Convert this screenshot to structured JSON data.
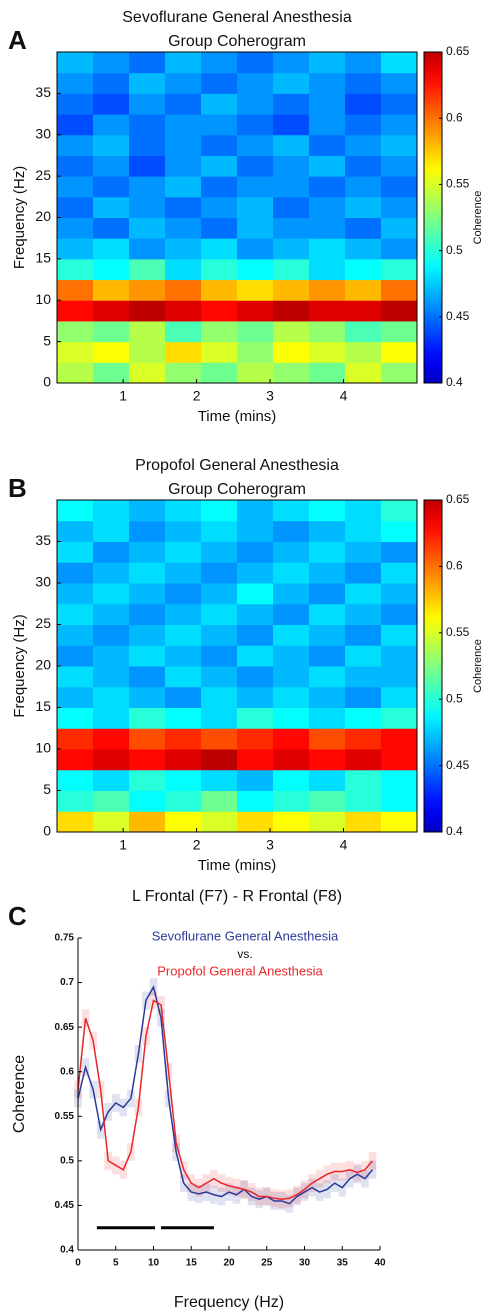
{
  "chart_data": [
    {
      "type": "heatmap",
      "panel": "A",
      "title": [
        "Sevoflurane General Anesthesia",
        "Group Coherogram"
      ],
      "xlabel": "Time (mins)",
      "ylabel": "Frequency (Hz)",
      "colorbar_label": "Coherence",
      "colormap": "jet",
      "x": [
        0.345,
        0.835,
        1.325,
        1.815,
        2.305,
        2.795,
        3.285,
        3.775,
        4.265,
        4.755
      ],
      "y": [
        1.25,
        3.75,
        6.25,
        8.75,
        11.25,
        13.75,
        16.25,
        18.75,
        21.25,
        23.75,
        26.25,
        28.75,
        31.25,
        33.75,
        36.25,
        38.75
      ],
      "values": [
        [
          0.54,
          0.52,
          0.55,
          0.53,
          0.52,
          0.54,
          0.53,
          0.52,
          0.55,
          0.53
        ],
        [
          0.55,
          0.56,
          0.54,
          0.57,
          0.55,
          0.53,
          0.56,
          0.55,
          0.54,
          0.56
        ],
        [
          0.53,
          0.52,
          0.54,
          0.51,
          0.53,
          0.52,
          0.54,
          0.53,
          0.51,
          0.52
        ],
        [
          0.63,
          0.64,
          0.65,
          0.64,
          0.63,
          0.64,
          0.65,
          0.64,
          0.64,
          0.65
        ],
        [
          0.6,
          0.58,
          0.59,
          0.6,
          0.58,
          0.57,
          0.58,
          0.59,
          0.58,
          0.6
        ],
        [
          0.5,
          0.49,
          0.51,
          0.48,
          0.5,
          0.49,
          0.5,
          0.48,
          0.49,
          0.5
        ],
        [
          0.47,
          0.48,
          0.46,
          0.47,
          0.48,
          0.46,
          0.47,
          0.48,
          0.47,
          0.46
        ],
        [
          0.46,
          0.45,
          0.47,
          0.46,
          0.45,
          0.47,
          0.46,
          0.46,
          0.45,
          0.47
        ],
        [
          0.45,
          0.47,
          0.46,
          0.45,
          0.46,
          0.47,
          0.45,
          0.46,
          0.47,
          0.46
        ],
        [
          0.46,
          0.45,
          0.46,
          0.47,
          0.45,
          0.46,
          0.46,
          0.45,
          0.46,
          0.45
        ],
        [
          0.45,
          0.46,
          0.44,
          0.46,
          0.47,
          0.45,
          0.46,
          0.47,
          0.45,
          0.46
        ],
        [
          0.46,
          0.47,
          0.45,
          0.46,
          0.45,
          0.46,
          0.47,
          0.45,
          0.46,
          0.47
        ],
        [
          0.44,
          0.46,
          0.45,
          0.46,
          0.46,
          0.45,
          0.44,
          0.46,
          0.45,
          0.46
        ],
        [
          0.45,
          0.44,
          0.46,
          0.45,
          0.47,
          0.46,
          0.45,
          0.46,
          0.44,
          0.45
        ],
        [
          0.46,
          0.45,
          0.47,
          0.46,
          0.45,
          0.46,
          0.47,
          0.46,
          0.45,
          0.46
        ],
        [
          0.47,
          0.46,
          0.45,
          0.47,
          0.46,
          0.45,
          0.46,
          0.47,
          0.46,
          0.48
        ]
      ],
      "xlim": [
        0.1,
        5
      ],
      "ylim": [
        0,
        40
      ],
      "xticks": [
        1,
        2,
        3,
        4
      ],
      "yticks": [
        0,
        5,
        10,
        15,
        20,
        25,
        30,
        35
      ],
      "zlim": [
        0.4,
        0.65
      ],
      "zticks": [
        0.4,
        0.45,
        0.5,
        0.55,
        0.6,
        0.65
      ]
    },
    {
      "type": "heatmap",
      "panel": "B",
      "title": [
        "Propofol General Anesthesia",
        "Group Coherogram"
      ],
      "xlabel": "Time (mins)",
      "ylabel": "Frequency (Hz)",
      "colorbar_label": "Coherence",
      "colormap": "jet",
      "x": [
        0.345,
        0.835,
        1.325,
        1.815,
        2.305,
        2.795,
        3.285,
        3.775,
        4.265,
        4.755
      ],
      "y": [
        1.25,
        3.75,
        6.25,
        8.75,
        11.25,
        13.75,
        16.25,
        18.75,
        21.25,
        23.75,
        26.25,
        28.75,
        31.25,
        33.75,
        36.25,
        38.75
      ],
      "values": [
        [
          0.57,
          0.55,
          0.58,
          0.56,
          0.55,
          0.57,
          0.56,
          0.55,
          0.57,
          0.56
        ],
        [
          0.5,
          0.51,
          0.49,
          0.5,
          0.52,
          0.49,
          0.5,
          0.51,
          0.5,
          0.49
        ],
        [
          0.49,
          0.48,
          0.5,
          0.49,
          0.48,
          0.47,
          0.49,
          0.48,
          0.5,
          0.49
        ],
        [
          0.63,
          0.64,
          0.63,
          0.64,
          0.65,
          0.63,
          0.64,
          0.63,
          0.64,
          0.63
        ],
        [
          0.62,
          0.63,
          0.61,
          0.62,
          0.61,
          0.62,
          0.63,
          0.61,
          0.62,
          0.63
        ],
        [
          0.49,
          0.48,
          0.5,
          0.49,
          0.48,
          0.5,
          0.49,
          0.48,
          0.49,
          0.5
        ],
        [
          0.47,
          0.48,
          0.47,
          0.46,
          0.48,
          0.47,
          0.48,
          0.47,
          0.46,
          0.48
        ],
        [
          0.48,
          0.47,
          0.46,
          0.48,
          0.47,
          0.46,
          0.47,
          0.48,
          0.47,
          0.47
        ],
        [
          0.46,
          0.47,
          0.48,
          0.47,
          0.46,
          0.48,
          0.47,
          0.46,
          0.48,
          0.47
        ],
        [
          0.47,
          0.46,
          0.47,
          0.48,
          0.47,
          0.46,
          0.48,
          0.47,
          0.46,
          0.48
        ],
        [
          0.48,
          0.47,
          0.46,
          0.47,
          0.48,
          0.47,
          0.46,
          0.48,
          0.47,
          0.46
        ],
        [
          0.47,
          0.48,
          0.47,
          0.46,
          0.47,
          0.49,
          0.47,
          0.46,
          0.48,
          0.47
        ],
        [
          0.46,
          0.47,
          0.48,
          0.47,
          0.46,
          0.47,
          0.48,
          0.47,
          0.46,
          0.48
        ],
        [
          0.48,
          0.46,
          0.47,
          0.48,
          0.47,
          0.46,
          0.47,
          0.48,
          0.47,
          0.46
        ],
        [
          0.47,
          0.48,
          0.46,
          0.47,
          0.48,
          0.47,
          0.46,
          0.47,
          0.48,
          0.49
        ],
        [
          0.49,
          0.48,
          0.47,
          0.48,
          0.49,
          0.47,
          0.48,
          0.49,
          0.48,
          0.5
        ]
      ],
      "xlim": [
        0.1,
        5
      ],
      "ylim": [
        0,
        40
      ],
      "xticks": [
        1,
        2,
        3,
        4
      ],
      "yticks": [
        0,
        5,
        10,
        15,
        20,
        25,
        30,
        35
      ],
      "zlim": [
        0.4,
        0.65
      ],
      "zticks": [
        0.4,
        0.45,
        0.5,
        0.55,
        0.6,
        0.65
      ]
    },
    {
      "type": "line",
      "panel": "C",
      "title": "L Frontal (F7) - R Frontal (F8)",
      "xlabel": "Frequency (Hz)",
      "ylabel": "Coherence",
      "legend_separator": "vs.",
      "x": [
        0,
        1,
        2,
        3,
        4,
        5,
        6,
        7,
        8,
        9,
        10,
        11,
        12,
        13,
        14,
        15,
        16,
        17,
        18,
        19,
        20,
        21,
        22,
        23,
        24,
        25,
        26,
        27,
        28,
        29,
        30,
        31,
        32,
        33,
        34,
        35,
        36,
        37,
        38,
        39
      ],
      "series": [
        {
          "name": "Sevoflurane General Anesthesia",
          "color": "#2b3a9a",
          "values": [
            0.57,
            0.605,
            0.58,
            0.535,
            0.555,
            0.565,
            0.56,
            0.57,
            0.62,
            0.68,
            0.695,
            0.66,
            0.57,
            0.51,
            0.475,
            0.465,
            0.463,
            0.465,
            0.462,
            0.46,
            0.465,
            0.462,
            0.468,
            0.46,
            0.457,
            0.46,
            0.455,
            0.455,
            0.452,
            0.46,
            0.465,
            0.47,
            0.465,
            0.468,
            0.475,
            0.47,
            0.48,
            0.485,
            0.48,
            0.49
          ],
          "error": [
            0.01,
            0.01,
            0.01,
            0.01,
            0.01,
            0.01,
            0.01,
            0.01,
            0.01,
            0.01,
            0.01,
            0.01,
            0.01,
            0.01,
            0.01,
            0.01,
            0.01,
            0.01,
            0.01,
            0.01,
            0.01,
            0.01,
            0.01,
            0.01,
            0.01,
            0.01,
            0.01,
            0.01,
            0.01,
            0.01,
            0.01,
            0.01,
            0.01,
            0.01,
            0.01,
            0.01,
            0.01,
            0.01,
            0.01,
            0.01
          ]
        },
        {
          "name": "Propofol General Anesthesia",
          "color": "#e8262a",
          "values": [
            0.58,
            0.66,
            0.635,
            0.58,
            0.5,
            0.495,
            0.49,
            0.51,
            0.56,
            0.64,
            0.68,
            0.675,
            0.6,
            0.52,
            0.49,
            0.475,
            0.47,
            0.475,
            0.48,
            0.475,
            0.472,
            0.47,
            0.468,
            0.465,
            0.46,
            0.46,
            0.458,
            0.457,
            0.458,
            0.462,
            0.468,
            0.475,
            0.48,
            0.485,
            0.488,
            0.488,
            0.49,
            0.487,
            0.49,
            0.5
          ],
          "error": [
            0.01,
            0.01,
            0.01,
            0.01,
            0.01,
            0.01,
            0.01,
            0.01,
            0.01,
            0.01,
            0.01,
            0.01,
            0.01,
            0.01,
            0.01,
            0.01,
            0.01,
            0.01,
            0.01,
            0.01,
            0.01,
            0.01,
            0.01,
            0.01,
            0.01,
            0.01,
            0.01,
            0.01,
            0.01,
            0.01,
            0.01,
            0.01,
            0.01,
            0.01,
            0.01,
            0.01,
            0.01,
            0.01,
            0.01,
            0.01
          ]
        }
      ],
      "significance_bars": [
        [
          2.5,
          10.2
        ],
        [
          11,
          18
        ]
      ],
      "significance_y": 0.425,
      "xlim": [
        0,
        40
      ],
      "ylim": [
        0.4,
        0.75
      ],
      "xticks": [
        0,
        5,
        10,
        15,
        20,
        25,
        30,
        35,
        40
      ],
      "yticks": [
        0.4,
        0.45,
        0.5,
        0.55,
        0.6,
        0.65,
        0.7,
        0.75
      ]
    }
  ]
}
